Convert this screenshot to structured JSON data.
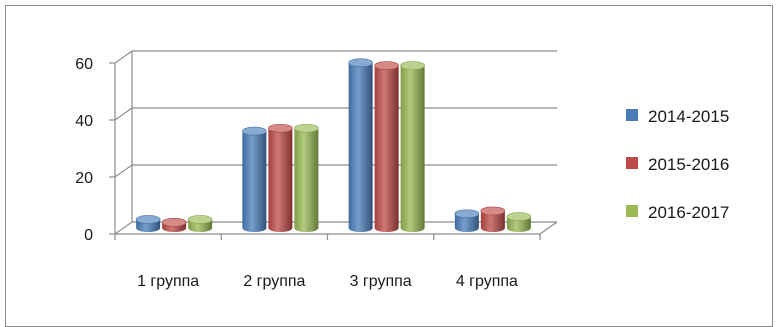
{
  "chart_data": {
    "type": "bar",
    "categories": [
      "1 группа",
      "2 группа",
      "3 группа",
      "4 группа"
    ],
    "series": [
      {
        "name": "2014-2015",
        "color": "#4a7ebb",
        "values": [
          3,
          34,
          58,
          5
        ]
      },
      {
        "name": "2015-2016",
        "color": "#be4b48",
        "values": [
          2,
          35,
          57,
          6
        ]
      },
      {
        "name": "2016-2017",
        "color": "#98b954",
        "values": [
          3,
          35,
          57,
          4
        ]
      }
    ],
    "y_ticks": [
      "0",
      "20",
      "40",
      "60"
    ],
    "ylim": [
      0,
      60
    ],
    "grid": true,
    "legend_position": "right",
    "style": "3d-cylinder"
  }
}
